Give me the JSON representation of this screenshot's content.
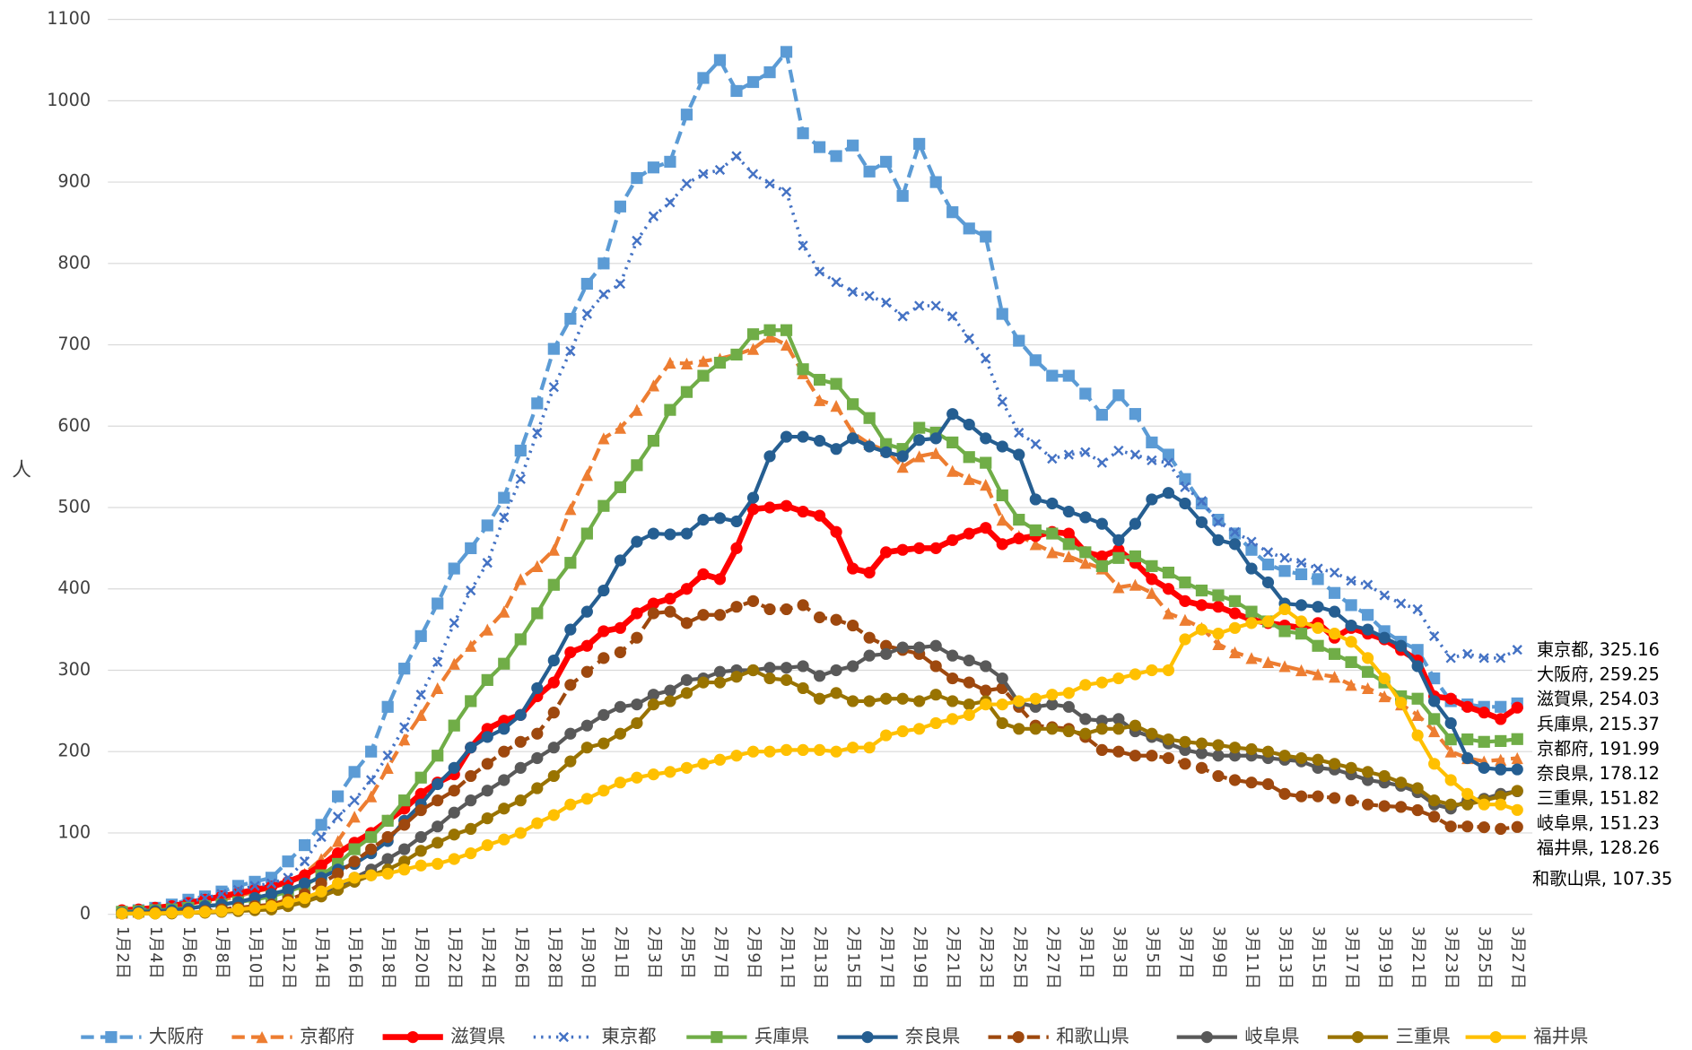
{
  "chart_data": {
    "type": "line",
    "y_label": "人",
    "ylim": [
      0,
      1100
    ],
    "yticks": [
      0,
      100,
      200,
      300,
      400,
      500,
      600,
      700,
      800,
      900,
      1000,
      1100
    ],
    "grid": true,
    "categories": [
      "1月2日",
      null,
      "1月4日",
      null,
      "1月6日",
      null,
      "1月8日",
      null,
      "1月10日",
      null,
      "1月12日",
      null,
      "1月14日",
      null,
      "1月16日",
      null,
      "1月18日",
      null,
      "1月20日",
      null,
      "1月22日",
      null,
      "1月24日",
      null,
      "1月26日",
      null,
      "1月28日",
      null,
      "1月30日",
      null,
      "2月1日",
      null,
      "2月3日",
      null,
      "2月5日",
      null,
      "2月7日",
      null,
      "2月9日",
      null,
      "2月11日",
      null,
      "2月13日",
      null,
      "2月15日",
      null,
      "2月17日",
      null,
      "2月19日",
      null,
      "2月21日",
      null,
      "2月23日",
      null,
      "2月25日",
      null,
      "2月27日",
      null,
      "3月1日",
      null,
      "3月3日",
      null,
      "3月5日",
      null,
      "3月7日",
      null,
      "3月9日",
      null,
      "3月11日",
      null,
      "3月13日",
      null,
      "3月15日",
      null,
      "3月17日",
      null,
      "3月19日",
      null,
      "3月21日",
      null,
      "3月23日",
      null,
      "3月25日",
      null,
      "3月27日"
    ],
    "series": [
      {
        "name": "大阪府",
        "color": "#5B9BD5",
        "dash": "dashed",
        "marker": "square",
        "values": [
          3,
          5,
          8,
          12,
          18,
          22,
          28,
          35,
          40,
          45,
          65,
          85,
          110,
          145,
          175,
          200,
          255,
          302,
          342,
          382,
          425,
          450,
          478,
          512,
          570,
          628,
          695,
          732,
          775,
          800,
          870,
          905,
          918,
          925,
          983,
          1028,
          1050,
          1012,
          1023,
          1035,
          1060,
          960,
          943,
          932,
          945,
          913,
          925,
          883,
          947,
          900,
          863,
          843,
          833,
          738,
          705,
          681,
          662,
          662,
          640,
          614,
          638,
          615,
          580,
          565,
          535,
          505,
          485,
          468,
          448,
          430,
          422,
          418,
          412,
          395,
          380,
          368,
          348,
          335,
          325,
          290,
          262,
          258,
          255,
          255,
          259.25
        ]
      },
      {
        "name": "京都府",
        "color": "#ED7D31",
        "dash": "dashed",
        "marker": "triangle",
        "values": [
          2,
          3,
          5,
          8,
          12,
          15,
          18,
          22,
          28,
          32,
          40,
          50,
          68,
          90,
          120,
          145,
          180,
          215,
          245,
          278,
          308,
          330,
          350,
          372,
          412,
          428,
          448,
          498,
          540,
          585,
          598,
          620,
          650,
          678,
          677,
          680,
          683,
          688,
          695,
          710,
          700,
          665,
          632,
          625,
          592,
          578,
          570,
          550,
          563,
          567,
          545,
          535,
          528,
          485,
          465,
          455,
          445,
          440,
          432,
          425,
          402,
          405,
          395,
          370,
          362,
          352,
          332,
          322,
          315,
          310,
          305,
          300,
          295,
          292,
          282,
          278,
          268,
          258,
          245,
          225,
          200,
          192,
          188,
          190,
          191.99
        ]
      },
      {
        "name": "滋賀県",
        "color": "#FF0000",
        "dash": "solid",
        "marker": "circle",
        "values": [
          5,
          6,
          8,
          10,
          14,
          18,
          22,
          26,
          30,
          34,
          40,
          48,
          60,
          75,
          88,
          100,
          115,
          130,
          148,
          162,
          172,
          205,
          228,
          238,
          245,
          268,
          285,
          322,
          330,
          348,
          352,
          370,
          382,
          388,
          400,
          418,
          412,
          450,
          498,
          500,
          502,
          495,
          490,
          470,
          425,
          420,
          445,
          448,
          450,
          450,
          460,
          468,
          475,
          455,
          462,
          465,
          470,
          468,
          445,
          440,
          448,
          432,
          412,
          400,
          385,
          380,
          378,
          370,
          362,
          358,
          355,
          352,
          358,
          340,
          352,
          345,
          338,
          325,
          312,
          268,
          265,
          255,
          248,
          240,
          254.03
        ]
      },
      {
        "name": "東京都",
        "color": "#4472C4",
        "dash": "dotted",
        "marker": "x",
        "values": [
          3,
          5,
          8,
          10,
          15,
          20,
          25,
          30,
          35,
          38,
          45,
          65,
          95,
          120,
          140,
          165,
          195,
          230,
          270,
          310,
          358,
          398,
          432,
          488,
          535,
          592,
          648,
          692,
          738,
          762,
          775,
          828,
          858,
          875,
          898,
          910,
          915,
          932,
          910,
          898,
          888,
          822,
          790,
          777,
          765,
          760,
          752,
          735,
          748,
          748,
          735,
          708,
          683,
          630,
          592,
          578,
          560,
          565,
          568,
          555,
          570,
          565,
          558,
          555,
          525,
          508,
          482,
          470,
          458,
          445,
          438,
          432,
          425,
          420,
          410,
          405,
          392,
          382,
          375,
          342,
          315,
          320,
          315,
          315,
          325.16
        ]
      },
      {
        "name": "兵庫県",
        "color": "#70AD47",
        "dash": "solid",
        "marker": "square",
        "values": [
          3,
          4,
          5,
          6,
          8,
          10,
          12,
          15,
          18,
          22,
          28,
          35,
          48,
          62,
          80,
          95,
          115,
          140,
          168,
          195,
          232,
          262,
          288,
          308,
          338,
          370,
          405,
          432,
          468,
          502,
          525,
          552,
          582,
          620,
          642,
          662,
          678,
          688,
          713,
          718,
          718,
          670,
          657,
          652,
          627,
          610,
          578,
          572,
          598,
          592,
          580,
          562,
          555,
          515,
          485,
          472,
          468,
          455,
          445,
          428,
          438,
          440,
          428,
          420,
          408,
          398,
          392,
          385,
          372,
          360,
          348,
          345,
          330,
          320,
          310,
          298,
          285,
          268,
          265,
          240,
          215,
          215,
          212,
          213,
          215.37
        ]
      },
      {
        "name": "奈良県",
        "color": "#255E91",
        "dash": "solid",
        "marker": "circle",
        "values": [
          2,
          3,
          4,
          5,
          7,
          10,
          12,
          15,
          20,
          25,
          30,
          38,
          45,
          55,
          62,
          75,
          90,
          115,
          135,
          160,
          180,
          205,
          218,
          228,
          245,
          278,
          312,
          350,
          372,
          398,
          435,
          458,
          468,
          467,
          468,
          485,
          487,
          483,
          512,
          563,
          587,
          587,
          582,
          572,
          585,
          575,
          568,
          563,
          583,
          585,
          615,
          602,
          585,
          575,
          565,
          510,
          505,
          495,
          488,
          480,
          460,
          480,
          510,
          518,
          505,
          482,
          460,
          455,
          425,
          408,
          382,
          380,
          378,
          372,
          355,
          350,
          340,
          330,
          305,
          262,
          235,
          192,
          180,
          178,
          178.12
        ]
      },
      {
        "name": "和歌山県",
        "color": "#9E480E",
        "dash": "dashed",
        "marker": "circle",
        "values": [
          1,
          1,
          2,
          2,
          3,
          4,
          6,
          8,
          10,
          12,
          18,
          25,
          38,
          50,
          65,
          80,
          95,
          110,
          128,
          140,
          152,
          170,
          185,
          200,
          212,
          222,
          248,
          282,
          298,
          315,
          322,
          340,
          370,
          372,
          358,
          368,
          368,
          378,
          385,
          375,
          375,
          380,
          365,
          362,
          355,
          340,
          330,
          325,
          320,
          305,
          290,
          285,
          275,
          278,
          255,
          232,
          230,
          228,
          218,
          202,
          200,
          195,
          195,
          192,
          185,
          180,
          170,
          165,
          162,
          160,
          148,
          145,
          145,
          143,
          140,
          135,
          133,
          132,
          128,
          120,
          108,
          108,
          107,
          105,
          107.35
        ]
      },
      {
        "name": "岐阜県",
        "color": "#595959",
        "dash": "solid",
        "marker": "circle",
        "values": [
          1,
          1,
          1,
          2,
          2,
          3,
          4,
          5,
          6,
          8,
          12,
          18,
          25,
          35,
          45,
          55,
          68,
          80,
          95,
          108,
          125,
          140,
          152,
          165,
          180,
          192,
          205,
          222,
          232,
          245,
          255,
          258,
          270,
          275,
          288,
          290,
          298,
          300,
          300,
          303,
          303,
          305,
          293,
          300,
          305,
          318,
          320,
          328,
          328,
          330,
          318,
          312,
          305,
          290,
          260,
          255,
          258,
          255,
          240,
          238,
          240,
          225,
          218,
          210,
          202,
          198,
          195,
          195,
          195,
          192,
          190,
          188,
          180,
          178,
          172,
          165,
          162,
          158,
          150,
          135,
          130,
          140,
          142,
          148,
          151.23
        ]
      },
      {
        "name": "三重県",
        "color": "#997300",
        "dash": "solid",
        "marker": "circle",
        "values": [
          1,
          1,
          1,
          1,
          2,
          2,
          3,
          4,
          5,
          6,
          10,
          15,
          22,
          30,
          40,
          48,
          55,
          65,
          78,
          88,
          98,
          105,
          118,
          130,
          140,
          155,
          170,
          188,
          205,
          210,
          222,
          235,
          258,
          262,
          272,
          285,
          285,
          292,
          300,
          290,
          288,
          278,
          265,
          272,
          262,
          262,
          265,
          265,
          262,
          270,
          262,
          258,
          262,
          235,
          228,
          228,
          228,
          225,
          222,
          228,
          228,
          232,
          222,
          215,
          212,
          210,
          208,
          205,
          203,
          200,
          195,
          192,
          190,
          185,
          180,
          175,
          170,
          162,
          155,
          140,
          135,
          135,
          140,
          145,
          151.82
        ]
      },
      {
        "name": "福井県",
        "color": "#FFC000",
        "dash": "solid",
        "marker": "circle",
        "values": [
          1,
          1,
          1,
          2,
          2,
          3,
          4,
          6,
          8,
          10,
          15,
          20,
          28,
          38,
          45,
          48,
          50,
          55,
          60,
          62,
          68,
          75,
          85,
          92,
          100,
          112,
          122,
          135,
          142,
          152,
          162,
          168,
          172,
          175,
          180,
          185,
          190,
          195,
          200,
          200,
          202,
          202,
          202,
          200,
          205,
          205,
          220,
          225,
          228,
          235,
          240,
          245,
          258,
          258,
          262,
          265,
          270,
          272,
          282,
          285,
          290,
          295,
          300,
          300,
          338,
          350,
          345,
          352,
          358,
          360,
          375,
          360,
          352,
          345,
          335,
          315,
          290,
          260,
          220,
          185,
          165,
          148,
          135,
          135,
          128.26
        ]
      }
    ],
    "annotations": [
      "東京都, 325.16",
      "大阪府, 259.25",
      "滋賀県, 254.03",
      "兵庫県, 215.37",
      "京都府, 191.99",
      "奈良県, 178.12",
      "三重県, 151.82",
      "岐阜県, 151.23",
      "福井県, 128.26",
      "和歌山県, 107.35"
    ]
  }
}
